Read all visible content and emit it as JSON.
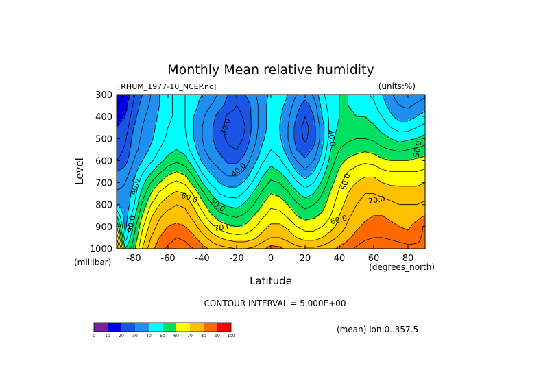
{
  "chart_data": {
    "type": "heatmap",
    "subtype": "filled-contour",
    "title": "Monthly Mean relative humidity",
    "file_label": "[RHUM_1977-10_NCEP.nc]",
    "units_label": "(units:%)",
    "xlabel": "Latitude",
    "ylabel": "Level",
    "x_units": "(degrees_north)",
    "y_units": "(millibar)",
    "xlim": [
      -90,
      90
    ],
    "ylim": [
      1000,
      300
    ],
    "x_ticks": [
      -80,
      -60,
      -40,
      -20,
      0,
      20,
      40,
      60,
      80
    ],
    "x_tick_labels": [
      "-80",
      "-60",
      "-40",
      "-20",
      "0",
      "20",
      "40",
      "60",
      "80"
    ],
    "y_ticks": [
      300,
      400,
      500,
      600,
      700,
      800,
      900,
      1000
    ],
    "y_tick_labels": [
      "300",
      "400",
      "500",
      "600",
      "700",
      "800",
      "900",
      "1000"
    ],
    "contour_interval_text": "CONTOUR INTERVAL = 5.000E+00",
    "mean_note": "(mean) lon:0..357.5",
    "colorbar_ticks": [
      "0",
      "10",
      "20",
      "30",
      "40",
      "50",
      "60",
      "70",
      "80",
      "90",
      "100"
    ],
    "colorbar_colors": [
      "#7a1fa8",
      "#0000e8",
      "#1a55e6",
      "#1f8ff0",
      "#00ffff",
      "#00e060",
      "#ffff00",
      "#ffc000",
      "#ff6a00",
      "#ff0000"
    ],
    "levels": [
      0,
      10,
      20,
      30,
      40,
      50,
      60,
      70,
      80,
      90,
      100
    ],
    "lat": [
      -90,
      -85,
      -80,
      -75,
      -70,
      -65,
      -60,
      -55,
      -50,
      -45,
      -40,
      -35,
      -30,
      -25,
      -20,
      -15,
      -10,
      -5,
      0,
      5,
      10,
      15,
      20,
      25,
      30,
      35,
      40,
      45,
      50,
      55,
      60,
      65,
      70,
      75,
      80,
      85,
      90
    ],
    "plev": [
      300,
      350,
      400,
      450,
      500,
      550,
      600,
      650,
      700,
      750,
      800,
      850,
      900,
      950,
      1000
    ],
    "values": [
      [
        12,
        16,
        24,
        30,
        35,
        40,
        44,
        46,
        45,
        42,
        40,
        38,
        34,
        30,
        28,
        30,
        34,
        38,
        41,
        44,
        40,
        35,
        32,
        36,
        44,
        48,
        50,
        50,
        48,
        46,
        44,
        40,
        36,
        32,
        30,
        32,
        34
      ],
      [
        15,
        18,
        26,
        32,
        36,
        40,
        44,
        46,
        45,
        42,
        38,
        35,
        32,
        28,
        25,
        27,
        32,
        38,
        42,
        42,
        38,
        32,
        28,
        32,
        42,
        48,
        50,
        50,
        49,
        48,
        46,
        42,
        38,
        35,
        34,
        36,
        38
      ],
      [
        18,
        20,
        28,
        34,
        37,
        41,
        44,
        46,
        45,
        40,
        36,
        32,
        28,
        24,
        23,
        26,
        32,
        38,
        42,
        41,
        36,
        30,
        25,
        30,
        40,
        47,
        50,
        51,
        50,
        50,
        48,
        45,
        41,
        38,
        38,
        40,
        42
      ],
      [
        20,
        22,
        30,
        35,
        38,
        42,
        45,
        47,
        45,
        40,
        35,
        31,
        27,
        23,
        21,
        25,
        32,
        38,
        42,
        40,
        35,
        28,
        23,
        28,
        38,
        47,
        51,
        52,
        52,
        52,
        51,
        48,
        45,
        43,
        43,
        45,
        47
      ],
      [
        21,
        24,
        32,
        36,
        39,
        43,
        46,
        48,
        46,
        40,
        35,
        31,
        27,
        24,
        22,
        26,
        33,
        39,
        43,
        41,
        35,
        28,
        24,
        28,
        38,
        48,
        53,
        54,
        55,
        55,
        54,
        52,
        50,
        48,
        49,
        50,
        52
      ],
      [
        22,
        26,
        33,
        37,
        41,
        45,
        48,
        50,
        48,
        42,
        36,
        32,
        29,
        26,
        25,
        29,
        35,
        41,
        45,
        43,
        37,
        30,
        27,
        31,
        40,
        50,
        55,
        57,
        58,
        59,
        58,
        56,
        55,
        54,
        55,
        56,
        57
      ],
      [
        25,
        28,
        35,
        40,
        44,
        48,
        52,
        54,
        52,
        46,
        39,
        35,
        32,
        29,
        29,
        32,
        38,
        44,
        48,
        46,
        41,
        35,
        31,
        35,
        43,
        52,
        58,
        61,
        63,
        64,
        63,
        61,
        60,
        60,
        60,
        61,
        62
      ],
      [
        30,
        32,
        38,
        44,
        49,
        54,
        58,
        60,
        58,
        52,
        44,
        39,
        36,
        33,
        33,
        36,
        42,
        48,
        52,
        50,
        46,
        40,
        36,
        40,
        47,
        55,
        61,
        65,
        67,
        68,
        68,
        66,
        65,
        65,
        65,
        65,
        66
      ],
      [
        33,
        35,
        40,
        48,
        55,
        60,
        64,
        66,
        64,
        58,
        50,
        44,
        40,
        38,
        38,
        41,
        46,
        52,
        56,
        55,
        51,
        46,
        42,
        45,
        51,
        58,
        64,
        68,
        70,
        72,
        72,
        70,
        69,
        69,
        69,
        69,
        70
      ],
      [
        36,
        36,
        42,
        52,
        60,
        66,
        69,
        71,
        70,
        64,
        57,
        50,
        45,
        43,
        43,
        46,
        51,
        56,
        60,
        59,
        56,
        51,
        48,
        50,
        55,
        61,
        66,
        70,
        73,
        75,
        75,
        74,
        73,
        72,
        72,
        72,
        73
      ],
      [
        40,
        36,
        44,
        56,
        65,
        70,
        73,
        75,
        74,
        69,
        62,
        56,
        51,
        49,
        48,
        51,
        55,
        60,
        64,
        63,
        60,
        56,
        53,
        55,
        58,
        63,
        68,
        72,
        75,
        77,
        78,
        77,
        76,
        75,
        75,
        75,
        76
      ],
      [
        50,
        37,
        48,
        60,
        69,
        74,
        77,
        78,
        77,
        73,
        67,
        61,
        57,
        55,
        54,
        56,
        60,
        64,
        67,
        67,
        64,
        60,
        58,
        59,
        61,
        65,
        70,
        74,
        77,
        79,
        80,
        80,
        79,
        78,
        77,
        78,
        80
      ],
      [
        60,
        38,
        52,
        64,
        72,
        77,
        80,
        81,
        80,
        77,
        72,
        67,
        63,
        61,
        60,
        61,
        64,
        68,
        71,
        71,
        69,
        65,
        63,
        63,
        65,
        68,
        72,
        76,
        79,
        81,
        82,
        82,
        81,
        80,
        79,
        82,
        86
      ],
      [
        70,
        42,
        55,
        67,
        75,
        80,
        83,
        85,
        84,
        81,
        77,
        73,
        70,
        68,
        67,
        67,
        69,
        72,
        75,
        75,
        73,
        70,
        68,
        68,
        70,
        73,
        76,
        79,
        82,
        84,
        85,
        85,
        84,
        83,
        82,
        84,
        86
      ],
      [
        80,
        50,
        58,
        70,
        78,
        83,
        86,
        88,
        87,
        85,
        82,
        79,
        77,
        76,
        75,
        75,
        76,
        79,
        82,
        81,
        79,
        77,
        76,
        76,
        77,
        79,
        81,
        83,
        86,
        88,
        89,
        90,
        89,
        88,
        87,
        86,
        85
      ]
    ],
    "contour_labels": [
      {
        "text": "30.0",
        "lat": -25,
        "plev": 450,
        "angle": -70
      },
      {
        "text": "40.0",
        "lat": -18,
        "plev": 650,
        "angle": -40
      },
      {
        "text": "40.0",
        "lat": 34,
        "plev": 500,
        "angle": 80
      },
      {
        "text": "50.0",
        "lat": 45,
        "plev": 700,
        "angle": -75
      },
      {
        "text": "50.0",
        "lat": -32,
        "plev": 810,
        "angle": 40
      },
      {
        "text": "50.0",
        "lat": 87,
        "plev": 550,
        "angle": -80
      },
      {
        "text": "40.0",
        "lat": -78,
        "plev": 720,
        "angle": -80
      },
      {
        "text": "60.0",
        "lat": -48,
        "plev": 780,
        "angle": 20
      },
      {
        "text": "60.0",
        "lat": 40,
        "plev": 880,
        "angle": -15
      },
      {
        "text": "70.0",
        "lat": 62,
        "plev": 790,
        "angle": -10
      },
      {
        "text": "70.0",
        "lat": -28,
        "plev": 915,
        "angle": -5
      },
      {
        "text": "90.0",
        "lat": -80,
        "plev": 890,
        "angle": -80
      }
    ],
    "grid": false,
    "legend": "bottom-left colorbar"
  }
}
